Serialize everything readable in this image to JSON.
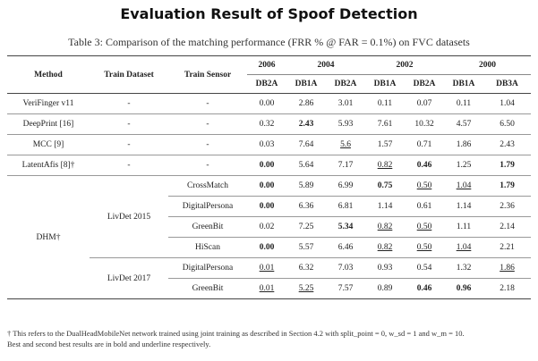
{
  "slide_title": "Evaluation Result of Spoof Detection",
  "caption": "Table 3: Comparison of the matching performance (FRR % @ FAR = 0.1%) on FVC datasets",
  "headers": {
    "method": "Method",
    "train_dataset": "Train Dataset",
    "train_sensor": "Train Sensor",
    "years": [
      "2006",
      "2004",
      "2002",
      "2000"
    ],
    "dbs": [
      "DB2A",
      "DB1A",
      "DB2A",
      "DB1A",
      "DB2A",
      "DB1A",
      "DB3A"
    ]
  },
  "simple_rows": [
    {
      "method": "VeriFinger v11",
      "dataset": "-",
      "sensor": "-",
      "values": [
        "0.00",
        "2.86",
        "3.01",
        "0.11",
        "0.07",
        "0.11",
        "1.04"
      ]
    },
    {
      "method": "DeepPrint [16]",
      "dataset": "-",
      "sensor": "-",
      "values": [
        "0.32",
        "2.43",
        "5.93",
        "7.61",
        "10.32",
        "4.57",
        "6.50"
      ]
    },
    {
      "method": "MCC [9]",
      "dataset": "-",
      "sensor": "-",
      "values": [
        "0.03",
        "7.64",
        "5.6",
        "1.57",
        "0.71",
        "1.86",
        "2.43"
      ]
    },
    {
      "method": "LatentAfis [8]†",
      "dataset": "-",
      "sensor": "-",
      "values": [
        "0.00",
        "5.64",
        "7.17",
        "0.82",
        "0.46",
        "1.25",
        "1.79"
      ]
    }
  ],
  "dhm": {
    "method": "DHM†",
    "groups": [
      {
        "dataset": "LivDet 2015",
        "rows": [
          {
            "sensor": "CrossMatch",
            "values": [
              "0.00",
              "5.89",
              "6.99",
              "0.75",
              "0.50",
              "1.04",
              "1.79"
            ]
          },
          {
            "sensor": "DigitalPersona",
            "values": [
              "0.00",
              "6.36",
              "6.81",
              "1.14",
              "0.61",
              "1.14",
              "2.36"
            ]
          },
          {
            "sensor": "GreenBit",
            "values": [
              "0.02",
              "7.25",
              "5.34",
              "0.82",
              "0.50",
              "1.11",
              "2.14"
            ]
          },
          {
            "sensor": "HiScan",
            "values": [
              "0.00",
              "5.57",
              "6.46",
              "0.82",
              "0.50",
              "1.04",
              "2.21"
            ]
          }
        ]
      },
      {
        "dataset": "LivDet 2017",
        "rows": [
          {
            "sensor": "DigitalPersona",
            "values": [
              "0.01",
              "6.32",
              "7.03",
              "0.93",
              "0.54",
              "1.32",
              "1.86"
            ]
          },
          {
            "sensor": "GreenBit",
            "values": [
              "0.01",
              "5.25",
              "7.57",
              "0.89",
              "0.46",
              "0.96",
              "2.18"
            ]
          }
        ]
      }
    ]
  },
  "footnote_1": "† This refers to the DualHeadMobileNet network trained using joint training as described in Section 4.2 with split_point = 0, w_sd = 1 and w_m = 10.",
  "footnote_2": "Best and second best results are in bold and underline respectively."
}
